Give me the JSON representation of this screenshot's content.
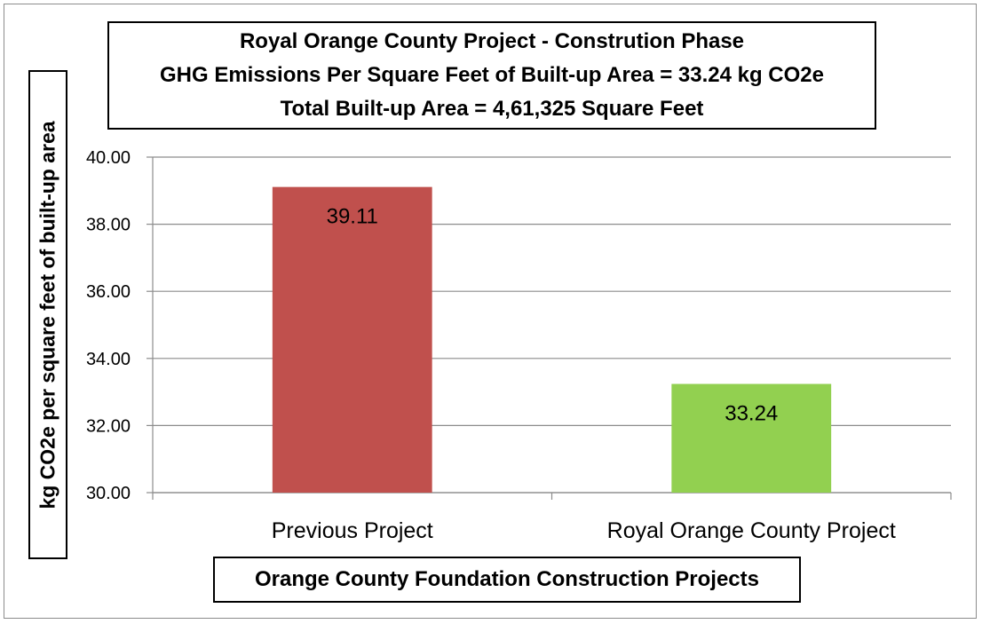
{
  "chart_data": {
    "type": "bar",
    "title_lines": [
      "Royal Orange County Project - Constrution Phase",
      "GHG Emissions Per Square Feet of Built-up Area = 33.24 kg CO2e",
      "Total Built-up Area = 4,61,325 Square Feet"
    ],
    "ylabel": "kg CO2e per square feet of built-up area",
    "xlabel": "Orange County Foundation Construction Projects",
    "categories": [
      "Previous Project",
      "Royal Orange County Project"
    ],
    "values": [
      39.11,
      33.24
    ],
    "data_labels": [
      "39.11",
      "33.24"
    ],
    "bar_colors": [
      "#c0504d",
      "#92d050"
    ],
    "ylim": [
      30,
      40
    ],
    "yticks": [
      "30.00",
      "32.00",
      "34.00",
      "36.00",
      "38.00",
      "40.00"
    ],
    "grid": true,
    "grid_color": "#8c8c8c",
    "legend": "none"
  }
}
